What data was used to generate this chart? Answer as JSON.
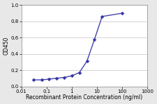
{
  "x_data": [
    0.031,
    0.063,
    0.125,
    0.25,
    0.5,
    1.0,
    2.0,
    4.0,
    8.0,
    16.0,
    100.0
  ],
  "y_data": [
    0.08,
    0.08,
    0.09,
    0.1,
    0.11,
    0.13,
    0.17,
    0.31,
    0.58,
    0.86,
    0.9
  ],
  "line_color": "#4444aa",
  "marker": "D",
  "marker_size": 2.5,
  "marker_facecolor": "#3333aa",
  "xlabel": "Recombinant Protein Concentration (ng/ml)",
  "ylabel": "OD450",
  "xticks": [
    0.01,
    0.1,
    1,
    10,
    100,
    1000
  ],
  "xtick_labels": [
    "0.01",
    "0.1",
    "1",
    "10",
    "100",
    "1000"
  ],
  "ylim": [
    0.0,
    1.0
  ],
  "yticks": [
    0.0,
    0.2,
    0.4,
    0.6,
    0.8,
    1.0
  ],
  "ytick_labels": [
    "0.0",
    "0.2",
    "0.4",
    "0.6",
    "0.8",
    "1.0"
  ],
  "axis_fontsize": 5.5,
  "tick_fontsize": 5.0,
  "background_color": "#e8e8e8",
  "plot_bg_color": "#ffffff",
  "grid_color": "#cccccc",
  "linewidth": 1.0
}
